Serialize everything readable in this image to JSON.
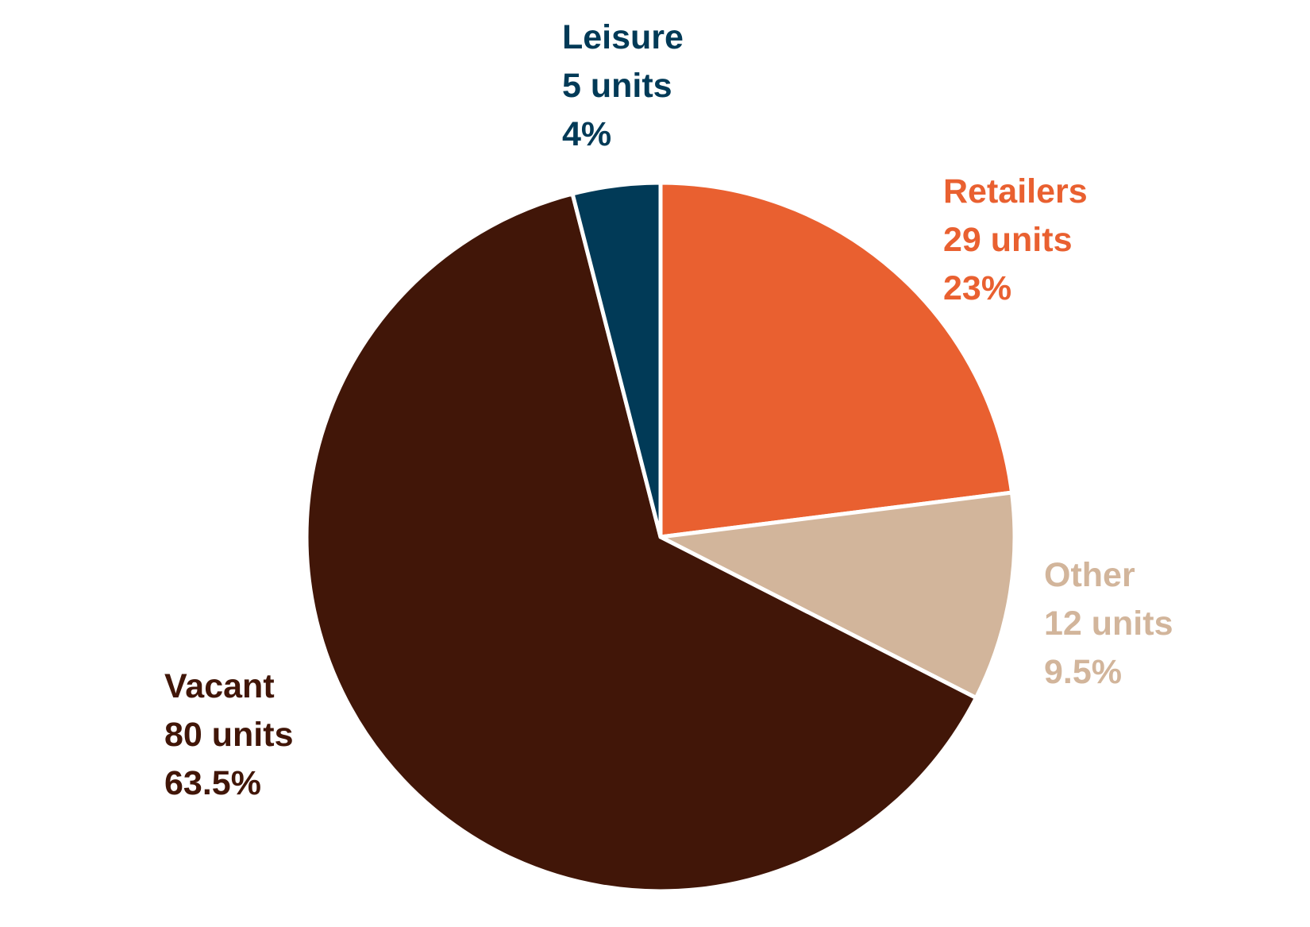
{
  "chart_data": {
    "type": "pie",
    "start_angle_deg": 0,
    "direction": "clockwise",
    "slices": [
      {
        "name": "Retailers",
        "units_label": "29 units",
        "percent_label": "23%",
        "units": 29,
        "percent": 23.0,
        "color": "#E96030"
      },
      {
        "name": "Other",
        "units_label": "12 units",
        "percent_label": "9.5%",
        "units": 12,
        "percent": 9.5,
        "color": "#D2B59B"
      },
      {
        "name": "Vacant",
        "units_label": "80 units",
        "percent_label": "63.5%",
        "units": 80,
        "percent": 63.5,
        "color": "#411608"
      },
      {
        "name": "Leisure",
        "units_label": "5 units",
        "percent_label": "4%",
        "units": 5,
        "percent": 4.0,
        "color": "#013A57"
      }
    ]
  }
}
